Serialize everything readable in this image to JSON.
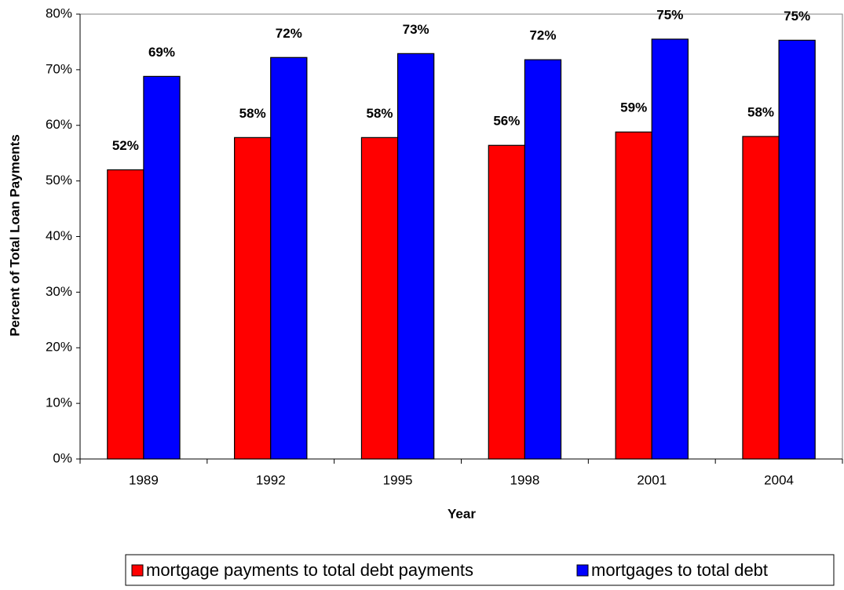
{
  "chart_data": {
    "type": "bar",
    "x_label": "Year",
    "y_label": "Percent of Total Loan Payments",
    "categories": [
      "1989",
      "1992",
      "1995",
      "1998",
      "2001",
      "2004"
    ],
    "series": [
      {
        "name": "mortgage payments to total debt payments",
        "color": "#ff0000",
        "values": [
          52.0,
          57.8,
          57.8,
          56.4,
          58.8,
          58.0
        ],
        "value_labels": [
          "52%",
          "58%",
          "58%",
          "56%",
          "59%",
          "58%"
        ]
      },
      {
        "name": "mortgages to total debt",
        "color": "#0000ff",
        "values": [
          68.8,
          72.2,
          72.9,
          71.8,
          75.5,
          75.3
        ],
        "value_labels": [
          "69%",
          "72%",
          "73%",
          "72%",
          "75%",
          "75%"
        ]
      }
    ],
    "ylim": [
      0,
      80
    ],
    "yticks": [
      {
        "value": 0,
        "label": "0%"
      },
      {
        "value": 10,
        "label": "10%"
      },
      {
        "value": 20,
        "label": "20%"
      },
      {
        "value": 30,
        "label": "30%"
      },
      {
        "value": 40,
        "label": "40%"
      },
      {
        "value": 50,
        "label": "50%"
      },
      {
        "value": 60,
        "label": "60%"
      },
      {
        "value": 70,
        "label": "70%"
      },
      {
        "value": 80,
        "label": "80%"
      }
    ],
    "grid": false,
    "legend": "bottom"
  }
}
